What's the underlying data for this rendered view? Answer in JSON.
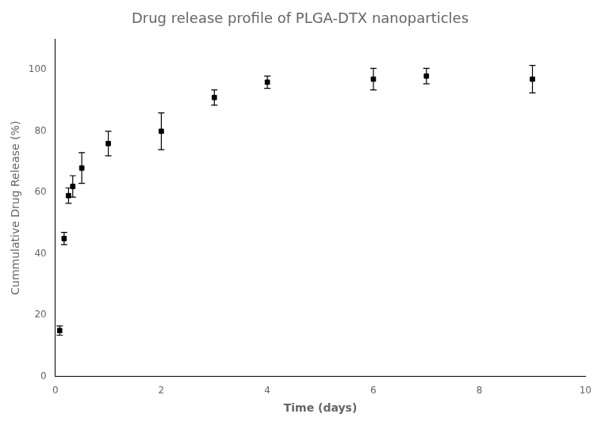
{
  "chart_data": {
    "type": "scatter",
    "title": "Drug release profile of PLGA-DTX nanoparticles",
    "xlabel": "Time (days)",
    "ylabel": "Cummulative Drug Release (%)",
    "x": [
      0.083,
      0.167,
      0.25,
      0.33,
      0.5,
      1.0,
      2.0,
      3.0,
      4.0,
      6.0,
      7.0,
      9.0
    ],
    "values": [
      15,
      45,
      59,
      62,
      68,
      76,
      80,
      91,
      96,
      97,
      98,
      97
    ],
    "yerr": [
      1.5,
      2.0,
      2.5,
      3.5,
      5.0,
      4.0,
      6.0,
      2.5,
      2.0,
      3.5,
      2.5,
      4.5
    ],
    "xlim": [
      0,
      10
    ],
    "ylim": [
      0,
      110
    ],
    "xticks": [
      0,
      2,
      4,
      6,
      8,
      10
    ],
    "yticks": [
      0,
      20,
      40,
      60,
      80,
      100
    ],
    "color": "#000000",
    "marker": "square",
    "grid": false
  }
}
